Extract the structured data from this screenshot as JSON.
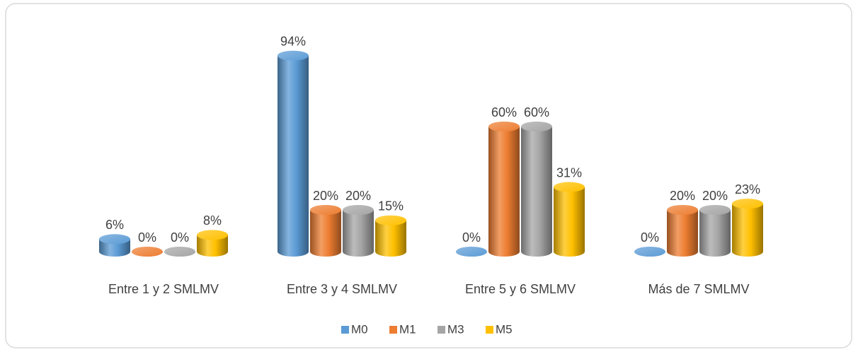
{
  "chart_data": {
    "type": "bar",
    "categories": [
      "Entre 1 y 2 SMLMV",
      "Entre 3 y 4 SMLMV",
      "Entre 5 y 6 SMLMV",
      "Más de 7 SMLMV"
    ],
    "series": [
      {
        "name": "M0",
        "color": "#5b9bd5",
        "values": [
          6,
          94,
          0,
          0
        ],
        "value_labels": [
          "6%",
          "94%",
          "0%",
          "0%"
        ]
      },
      {
        "name": "M1",
        "color": "#ed7d31",
        "values": [
          0,
          20,
          60,
          20
        ],
        "value_labels": [
          "0%",
          "20%",
          "60%",
          "20%"
        ]
      },
      {
        "name": "M3",
        "color": "#a5a5a5",
        "values": [
          0,
          20,
          60,
          20
        ],
        "value_labels": [
          "0%",
          "20%",
          "60%",
          "20%"
        ]
      },
      {
        "name": "M5",
        "color": "#ffc000",
        "values": [
          8,
          15,
          31,
          23
        ],
        "value_labels": [
          "8%",
          "15%",
          "31%",
          "23%"
        ]
      }
    ],
    "ylim": [
      0,
      100
    ],
    "legend": "bottom"
  }
}
